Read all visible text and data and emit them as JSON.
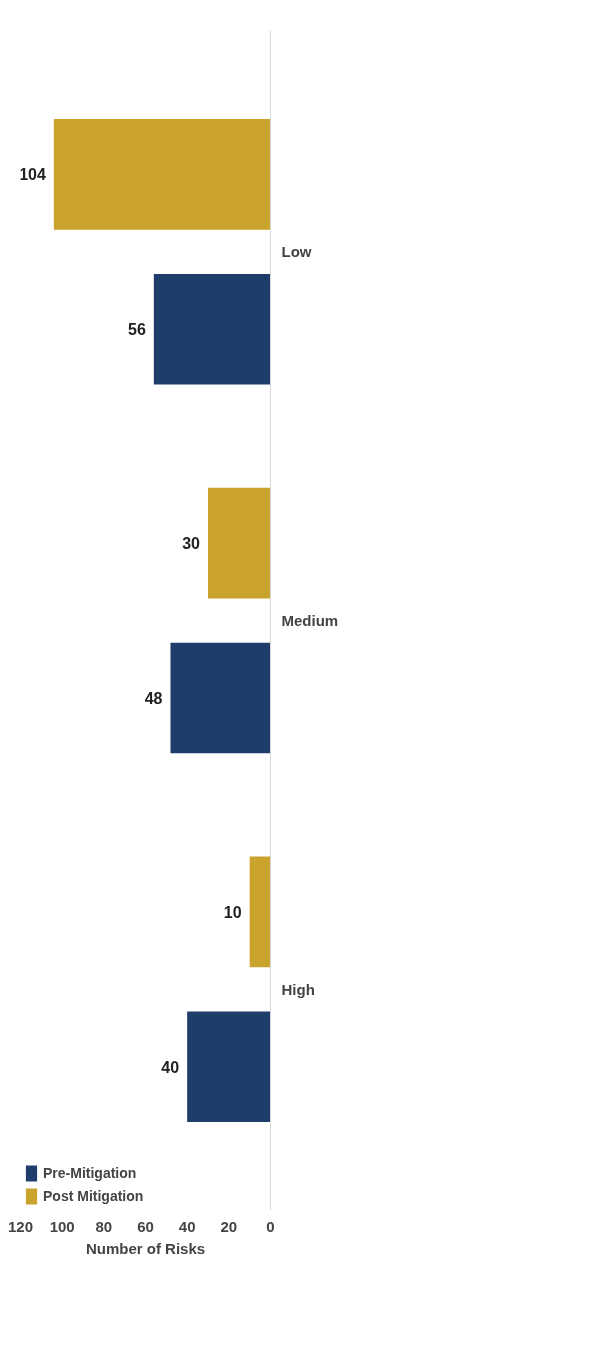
{
  "chart_data": {
    "type": "bar",
    "orientation": "horizontal",
    "xlabel": "Number of Risks",
    "categories": [
      "Low",
      "Medium",
      "High"
    ],
    "series": [
      {
        "name": "Pre-Mitigation",
        "color": "#1f3d6b",
        "values": [
          56,
          48,
          40
        ]
      },
      {
        "name": "Post Mitigation",
        "color": "#c9a32c",
        "values": [
          104,
          30,
          10
        ]
      }
    ],
    "xlim": [
      120,
      0
    ],
    "xticks": [
      0,
      20,
      40,
      60,
      80,
      100,
      120
    ],
    "data_labels": true,
    "grid": false,
    "legend": "bottom left"
  }
}
